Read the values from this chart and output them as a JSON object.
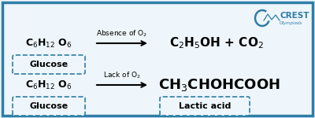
{
  "background_color": "#eef6fb",
  "border_color": "#2e7da6",
  "border_linewidth": 2.5,
  "logo_text_crest": "CREST",
  "logo_text_sub": "Olympiads",
  "eq1_reactant": "C$_6$H$_{12}$ O$_6$",
  "eq1_condition": "Absence of O$_2$",
  "eq1_product": "C$_2$H$_5$OH + CO$_2$",
  "eq1_label": "Glucose",
  "eq2_reactant": "C$_6$H$_{12}$ O$_6$",
  "eq2_condition": "Lack of O$_2$",
  "eq2_product": "CH$_3$CHOHCOOH",
  "eq2_label1": "Glucose",
  "eq2_label2": "Lactic acid",
  "text_color": "#000000",
  "dashed_box_color": "#2e7da6",
  "arrow_color": "#000000",
  "reactant_fontsize": 9,
  "product_fontsize1": 11,
  "product_fontsize2": 13,
  "condition_fontsize": 6.5,
  "label_fontsize": 8
}
